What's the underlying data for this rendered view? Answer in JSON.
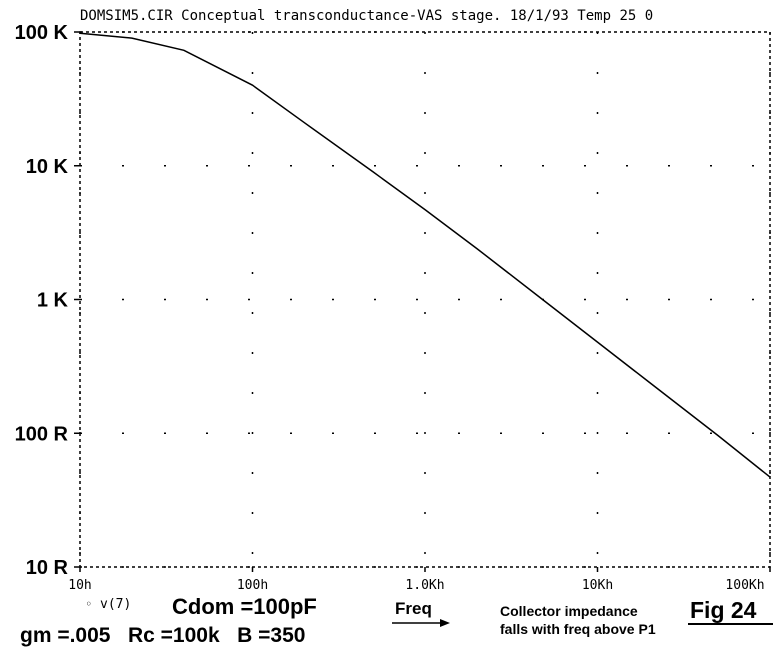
{
  "chart_data": {
    "type": "line",
    "title": "DOMSIM5.CIR Conceptual transconductance-VAS stage. 18/1/93  Temp 25 0",
    "x": [
      10,
      20,
      40,
      100,
      200,
      500,
      1000,
      2000,
      5000,
      10000,
      20000,
      50000,
      100000
    ],
    "series": [
      {
        "name": "v(7)",
        "color": "#000000",
        "values": [
          98000,
          90000,
          73000,
          40000,
          21000,
          9000,
          4700,
          2400,
          960,
          480,
          240,
          96,
          47
        ]
      }
    ],
    "xlim": [
      10,
      100000
    ],
    "ylim": [
      10,
      100000
    ],
    "xticks": [
      {
        "value": 10,
        "label": "10h"
      },
      {
        "value": 100,
        "label": "100h"
      },
      {
        "value": 1000,
        "label": "1.0Kh"
      },
      {
        "value": 10000,
        "label": "10Kh"
      },
      {
        "value": 100000,
        "label": "100Kh"
      }
    ],
    "yticks": [
      {
        "value": 100000,
        "label": "100 K"
      },
      {
        "value": 10000,
        "label": "10 K"
      },
      {
        "value": 1000,
        "label": "1 K"
      },
      {
        "value": 100,
        "label": "100 R"
      },
      {
        "value": 10,
        "label": "10 R"
      }
    ],
    "xscale": "log",
    "yscale": "log",
    "grid": true,
    "annotations": {
      "cdom": "Cdom =100pF",
      "params": "gm =.005   Rc =100k   B =350",
      "freq": "Freq",
      "caption_line1": "Collector impedance",
      "caption_line2": "falls with freq above P1",
      "figure": "Fig 24"
    }
  }
}
